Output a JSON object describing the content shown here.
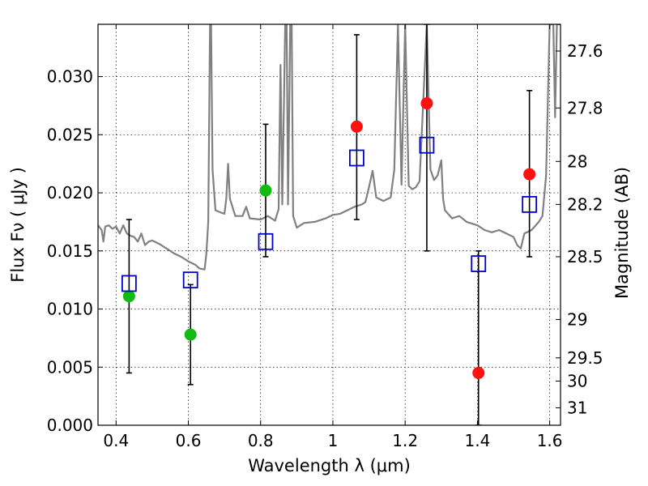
{
  "chart_data": {
    "type": "scatter",
    "title": "",
    "xlabel": "Wavelength  λ (μm)",
    "ylabel": "Flux  Fν  ( μJy )",
    "ylabel_right": "Magnitude (AB)",
    "xlim": [
      0.35,
      1.63
    ],
    "ylim": [
      0.0,
      0.0345
    ],
    "grid": true,
    "x_ticks": [
      0.4,
      0.6,
      0.8,
      1.0,
      1.2,
      1.4,
      1.6
    ],
    "x_tick_labels": [
      "0.4",
      "0.6",
      "0.8",
      "1",
      "1.2",
      "1.4",
      "1.6"
    ],
    "y_ticks": [
      0.0,
      0.005,
      0.01,
      0.015,
      0.02,
      0.025,
      0.03
    ],
    "y_tick_labels": [
      "0.000",
      "0.005",
      "0.010",
      "0.015",
      "0.020",
      "0.025",
      "0.030"
    ],
    "right_ticks": [
      {
        "label": "27.6",
        "flux": 0.0322
      },
      {
        "label": "27.8",
        "flux": 0.0273
      },
      {
        "label": "28",
        "flux": 0.0227
      },
      {
        "label": "28.2",
        "flux": 0.019
      },
      {
        "label": "28.5",
        "flux": 0.0145
      },
      {
        "label": "29",
        "flux": 0.0091
      },
      {
        "label": "29.5",
        "flux": 0.0058
      },
      {
        "label": "30",
        "flux": 0.0038
      },
      {
        "label": "31",
        "flux": 0.0015
      }
    ],
    "colors": {
      "model": "#808080",
      "green_points": "#11bb11",
      "red_points": "#ff1111",
      "model_bands": "#0000cc",
      "errorbar": "#000000"
    },
    "series": [
      {
        "kind": "line",
        "points": [
          [
            0.35,
            0.0172
          ],
          [
            0.36,
            0.0168
          ],
          [
            0.365,
            0.0158
          ],
          [
            0.37,
            0.0171
          ],
          [
            0.38,
            0.0172
          ],
          [
            0.39,
            0.0169
          ],
          [
            0.4,
            0.0171
          ],
          [
            0.41,
            0.0165
          ],
          [
            0.42,
            0.0172
          ],
          [
            0.43,
            0.0165
          ],
          [
            0.44,
            0.0163
          ],
          [
            0.45,
            0.0162
          ],
          [
            0.46,
            0.0158
          ],
          [
            0.47,
            0.0165
          ],
          [
            0.48,
            0.0155
          ],
          [
            0.49,
            0.0158
          ],
          [
            0.5,
            0.0159
          ],
          [
            0.52,
            0.0156
          ],
          [
            0.54,
            0.0152
          ],
          [
            0.56,
            0.0148
          ],
          [
            0.58,
            0.0145
          ],
          [
            0.6,
            0.0141
          ],
          [
            0.62,
            0.0138
          ],
          [
            0.63,
            0.0135
          ],
          [
            0.645,
            0.0134
          ],
          [
            0.65,
            0.0148
          ],
          [
            0.655,
            0.0175
          ],
          [
            0.66,
            0.0345
          ],
          [
            0.663,
            0.0345
          ],
          [
            0.667,
            0.022
          ],
          [
            0.675,
            0.0185
          ],
          [
            0.69,
            0.0183
          ],
          [
            0.7,
            0.0182
          ],
          [
            0.705,
            0.0195
          ],
          [
            0.71,
            0.0225
          ],
          [
            0.715,
            0.0195
          ],
          [
            0.73,
            0.018
          ],
          [
            0.75,
            0.018
          ],
          [
            0.76,
            0.0188
          ],
          [
            0.77,
            0.0178
          ],
          [
            0.8,
            0.0177
          ],
          [
            0.82,
            0.018
          ],
          [
            0.84,
            0.0176
          ],
          [
            0.85,
            0.0186
          ],
          [
            0.855,
            0.031
          ],
          [
            0.86,
            0.019
          ],
          [
            0.868,
            0.0345
          ],
          [
            0.872,
            0.0345
          ],
          [
            0.876,
            0.019
          ],
          [
            0.882,
            0.0345
          ],
          [
            0.886,
            0.0345
          ],
          [
            0.89,
            0.018
          ],
          [
            0.9,
            0.017
          ],
          [
            0.92,
            0.0174
          ],
          [
            0.95,
            0.0175
          ],
          [
            0.98,
            0.0178
          ],
          [
            1.0,
            0.0181
          ],
          [
            1.02,
            0.0182
          ],
          [
            1.04,
            0.0185
          ],
          [
            1.06,
            0.0188
          ],
          [
            1.08,
            0.019
          ],
          [
            1.09,
            0.0192
          ],
          [
            1.1,
            0.0205
          ],
          [
            1.11,
            0.0219
          ],
          [
            1.12,
            0.0196
          ],
          [
            1.14,
            0.0193
          ],
          [
            1.16,
            0.0196
          ],
          [
            1.17,
            0.022
          ],
          [
            1.18,
            0.0345
          ],
          [
            1.19,
            0.0207
          ],
          [
            1.2,
            0.0345
          ],
          [
            1.21,
            0.0206
          ],
          [
            1.22,
            0.0203
          ],
          [
            1.23,
            0.0205
          ],
          [
            1.24,
            0.021
          ],
          [
            1.26,
            0.0345
          ],
          [
            1.265,
            0.028
          ],
          [
            1.27,
            0.022
          ],
          [
            1.28,
            0.0211
          ],
          [
            1.29,
            0.0215
          ],
          [
            1.3,
            0.0228
          ],
          [
            1.305,
            0.0195
          ],
          [
            1.31,
            0.0185
          ],
          [
            1.33,
            0.0178
          ],
          [
            1.35,
            0.018
          ],
          [
            1.37,
            0.0175
          ],
          [
            1.4,
            0.0172
          ],
          [
            1.42,
            0.0168
          ],
          [
            1.44,
            0.0166
          ],
          [
            1.46,
            0.0168
          ],
          [
            1.48,
            0.0165
          ],
          [
            1.5,
            0.0162
          ],
          [
            1.51,
            0.0155
          ],
          [
            1.52,
            0.0152
          ],
          [
            1.53,
            0.0165
          ],
          [
            1.55,
            0.0168
          ],
          [
            1.57,
            0.0175
          ],
          [
            1.58,
            0.018
          ],
          [
            1.59,
            0.0215
          ],
          [
            1.6,
            0.0345
          ],
          [
            1.61,
            0.0345
          ],
          [
            1.615,
            0.0265
          ],
          [
            1.62,
            0.0345
          ],
          [
            1.63,
            0.0345
          ]
        ]
      },
      {
        "kind": "errorbar",
        "points": [
          {
            "x": 0.436,
            "y": 0.0111,
            "lo": 0.0045,
            "hi": 0.0177
          },
          {
            "x": 0.606,
            "y": 0.0078,
            "lo": 0.0035,
            "hi": 0.0121
          },
          {
            "x": 0.814,
            "y": 0.0202,
            "lo": 0.0145,
            "hi": 0.0259
          },
          {
            "x": 1.066,
            "y": 0.0257,
            "lo": 0.0177,
            "hi": 0.0336
          },
          {
            "x": 1.26,
            "y": 0.0277,
            "lo": 0.015,
            "hi": 0.0345
          },
          {
            "x": 1.403,
            "y": 0.0045,
            "lo": 0.0,
            "hi": 0.015
          },
          {
            "x": 1.544,
            "y": 0.0216,
            "lo": 0.0145,
            "hi": 0.0288
          }
        ]
      },
      {
        "kind": "points-green",
        "points": [
          [
            0.436,
            0.0111
          ],
          [
            0.606,
            0.0078
          ],
          [
            0.814,
            0.0202
          ]
        ]
      },
      {
        "kind": "points-red",
        "points": [
          [
            1.066,
            0.0257
          ],
          [
            1.26,
            0.0277
          ],
          [
            1.403,
            0.0045
          ],
          [
            1.544,
            0.0216
          ]
        ]
      },
      {
        "kind": "model-squares",
        "points": [
          [
            0.436,
            0.0122
          ],
          [
            0.606,
            0.0125
          ],
          [
            0.814,
            0.0158
          ],
          [
            1.066,
            0.023
          ],
          [
            1.26,
            0.0241
          ],
          [
            1.403,
            0.0139
          ],
          [
            1.544,
            0.019
          ]
        ]
      }
    ]
  }
}
